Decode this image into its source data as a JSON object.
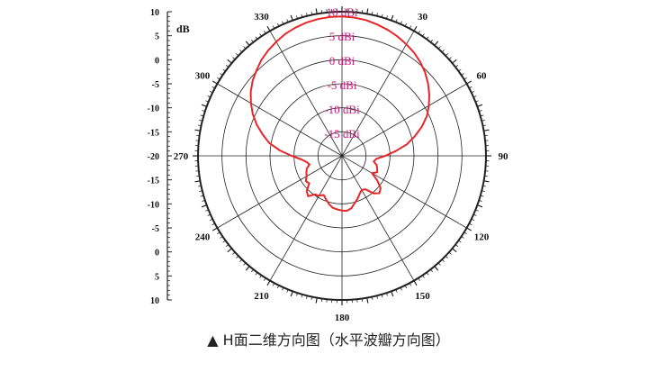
{
  "caption": "▲ H面二维方向图（水平波瓣方向图）",
  "chart_data": {
    "type": "polar-line",
    "unit_label": "dB",
    "radial_axis": {
      "range_dbi": [
        -20,
        10
      ],
      "ring_labels": [
        "10 dBi",
        "5 dBi",
        "0 dBi",
        "-5 dBi",
        "-10 dBi",
        "-15 dBi"
      ],
      "scale_ticks": [
        "10",
        "5",
        "0",
        "-5",
        "-10",
        "-15",
        "-20",
        "-15",
        "-10",
        "-5",
        "0",
        "5",
        "10"
      ]
    },
    "angular_axis": {
      "zero_at": "top",
      "direction": "clockwise",
      "tick_labels": [
        {
          "angle": 0,
          "label": ""
        },
        {
          "angle": 30,
          "label": "30"
        },
        {
          "angle": 60,
          "label": "60"
        },
        {
          "angle": 90,
          "label": "90"
        },
        {
          "angle": 120,
          "label": "120"
        },
        {
          "angle": 150,
          "label": "150"
        },
        {
          "angle": 180,
          "label": "180"
        },
        {
          "angle": 210,
          "label": "210"
        },
        {
          "angle": 240,
          "label": "240"
        },
        {
          "angle": 270,
          "label": "270"
        },
        {
          "angle": 300,
          "label": "300"
        },
        {
          "angle": 330,
          "label": "330"
        }
      ]
    },
    "series": [
      {
        "color": "#e8262a",
        "points": [
          [
            0,
            9.0
          ],
          [
            5,
            8.9
          ],
          [
            10,
            8.7
          ],
          [
            15,
            8.3
          ],
          [
            20,
            7.9
          ],
          [
            25,
            7.4
          ],
          [
            30,
            6.8
          ],
          [
            35,
            6.2
          ],
          [
            40,
            5.4
          ],
          [
            45,
            4.5
          ],
          [
            50,
            3.4
          ],
          [
            55,
            2.2
          ],
          [
            60,
            0.9
          ],
          [
            65,
            -0.5
          ],
          [
            70,
            -2.3
          ],
          [
            75,
            -4.3
          ],
          [
            80,
            -6.3
          ],
          [
            85,
            -8.8
          ],
          [
            90,
            -11.0
          ],
          [
            95,
            -12.8
          ],
          [
            100,
            -13.3
          ],
          [
            105,
            -12.5
          ],
          [
            110,
            -12.2
          ],
          [
            115,
            -11.9
          ],
          [
            120,
            -12.8
          ],
          [
            125,
            -11.0
          ],
          [
            130,
            -9.5
          ],
          [
            135,
            -9.0
          ],
          [
            140,
            -9.8
          ],
          [
            145,
            -11.5
          ],
          [
            150,
            -11.8
          ],
          [
            155,
            -11.3
          ],
          [
            160,
            -10.5
          ],
          [
            165,
            -9.8
          ],
          [
            170,
            -8.9
          ],
          [
            175,
            -8.5
          ],
          [
            180,
            -8.6
          ],
          [
            185,
            -8.8
          ],
          [
            190,
            -9.0
          ],
          [
            195,
            -9.6
          ],
          [
            200,
            -10.3
          ],
          [
            205,
            -11.0
          ],
          [
            210,
            -10.4
          ],
          [
            215,
            -10.2
          ],
          [
            220,
            -9.0
          ],
          [
            225,
            -9.6
          ],
          [
            230,
            -11.1
          ],
          [
            235,
            -10.8
          ],
          [
            240,
            -11.5
          ],
          [
            245,
            -11.8
          ],
          [
            250,
            -12.2
          ],
          [
            255,
            -13.0
          ],
          [
            260,
            -12.5
          ],
          [
            265,
            -11.5
          ],
          [
            270,
            -9.5
          ],
          [
            275,
            -7.0
          ],
          [
            280,
            -4.6
          ],
          [
            285,
            -2.9
          ],
          [
            290,
            -1.1
          ],
          [
            295,
            0.5
          ],
          [
            300,
            1.9
          ],
          [
            305,
            3.2
          ],
          [
            310,
            4.3
          ],
          [
            315,
            5.2
          ],
          [
            320,
            6.1
          ],
          [
            325,
            6.8
          ],
          [
            330,
            7.4
          ],
          [
            335,
            8.0
          ],
          [
            340,
            8.4
          ],
          [
            345,
            8.7
          ],
          [
            350,
            8.9
          ],
          [
            355,
            9.0
          ]
        ]
      }
    ],
    "grid": true,
    "colors": {
      "curve": "#e8262a",
      "ring_labels": "#cc1a7a",
      "grid": "#222222",
      "text": "#111111"
    }
  }
}
